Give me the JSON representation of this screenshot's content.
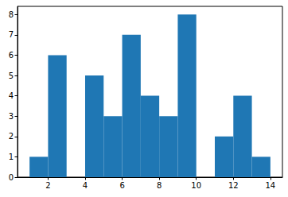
{
  "chart_data": {
    "type": "histogram",
    "bins": [
      1,
      2,
      3,
      4,
      5,
      6,
      7,
      8,
      9,
      10,
      11,
      12,
      13,
      14
    ],
    "values": [
      1,
      6,
      0,
      5,
      3,
      7,
      4,
      3,
      8,
      0,
      2,
      4,
      1
    ],
    "color": "#1f77b4",
    "xlim": [
      0.35,
      14.65
    ],
    "xticks": [
      2,
      4,
      6,
      8,
      10,
      12,
      14
    ],
    "ylim": [
      0,
      8.4
    ],
    "yticks": [
      0,
      1,
      2,
      3,
      4,
      5,
      6,
      7,
      8
    ],
    "grid": false
  }
}
